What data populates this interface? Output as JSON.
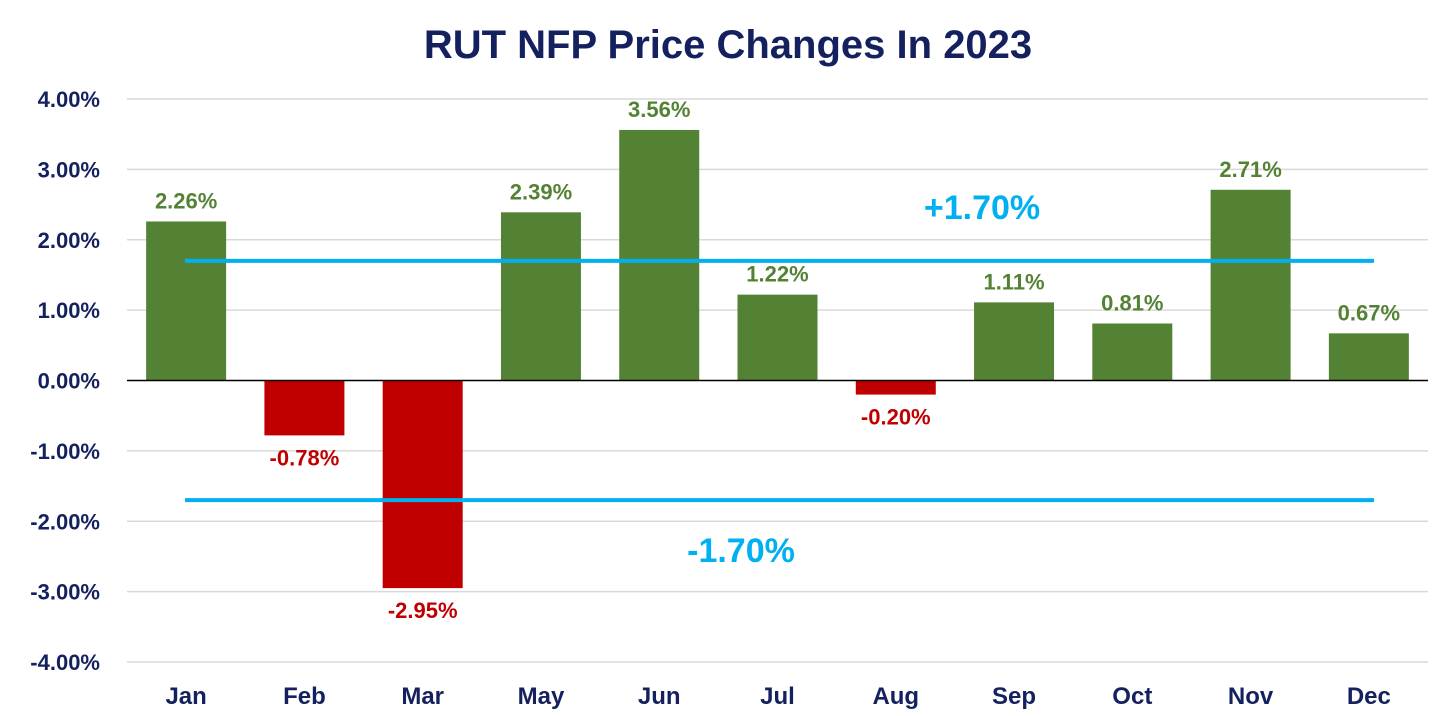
{
  "chart_data": {
    "type": "bar",
    "title": "RUT NFP Price Changes In 2023",
    "categories": [
      "Jan",
      "Feb",
      "Mar",
      "May",
      "Jun",
      "Jul",
      "Aug",
      "Sep",
      "Oct",
      "Nov",
      "Dec"
    ],
    "values": [
      2.26,
      -0.78,
      -2.95,
      2.39,
      3.56,
      1.22,
      -0.2,
      1.11,
      0.81,
      2.71,
      0.67
    ],
    "data_labels": [
      "2.26%",
      "-0.78%",
      "-2.95%",
      "2.39%",
      "3.56%",
      "1.22%",
      "-0.20%",
      "1.11%",
      "0.81%",
      "2.71%",
      "0.67%"
    ],
    "ylim": [
      -4,
      4
    ],
    "yticks": [
      4,
      3,
      2,
      1,
      0,
      -1,
      -2,
      -3,
      -4
    ],
    "ytick_labels": [
      "4.00%",
      "3.00%",
      "2.00%",
      "1.00%",
      "0.00%",
      "-1.00%",
      "-2.00%",
      "-3.00%",
      "-4.00%"
    ],
    "grid": true,
    "reference_lines": [
      {
        "value": 1.7,
        "label": "+1.70%"
      },
      {
        "value": -1.7,
        "label": "-1.70%"
      }
    ],
    "colors": {
      "positive": "#548235",
      "negative": "#c00000",
      "reference": "#00b0f0",
      "title": "#14215e",
      "axis_text": "#14215e",
      "grid": "#d9d9d9"
    }
  }
}
